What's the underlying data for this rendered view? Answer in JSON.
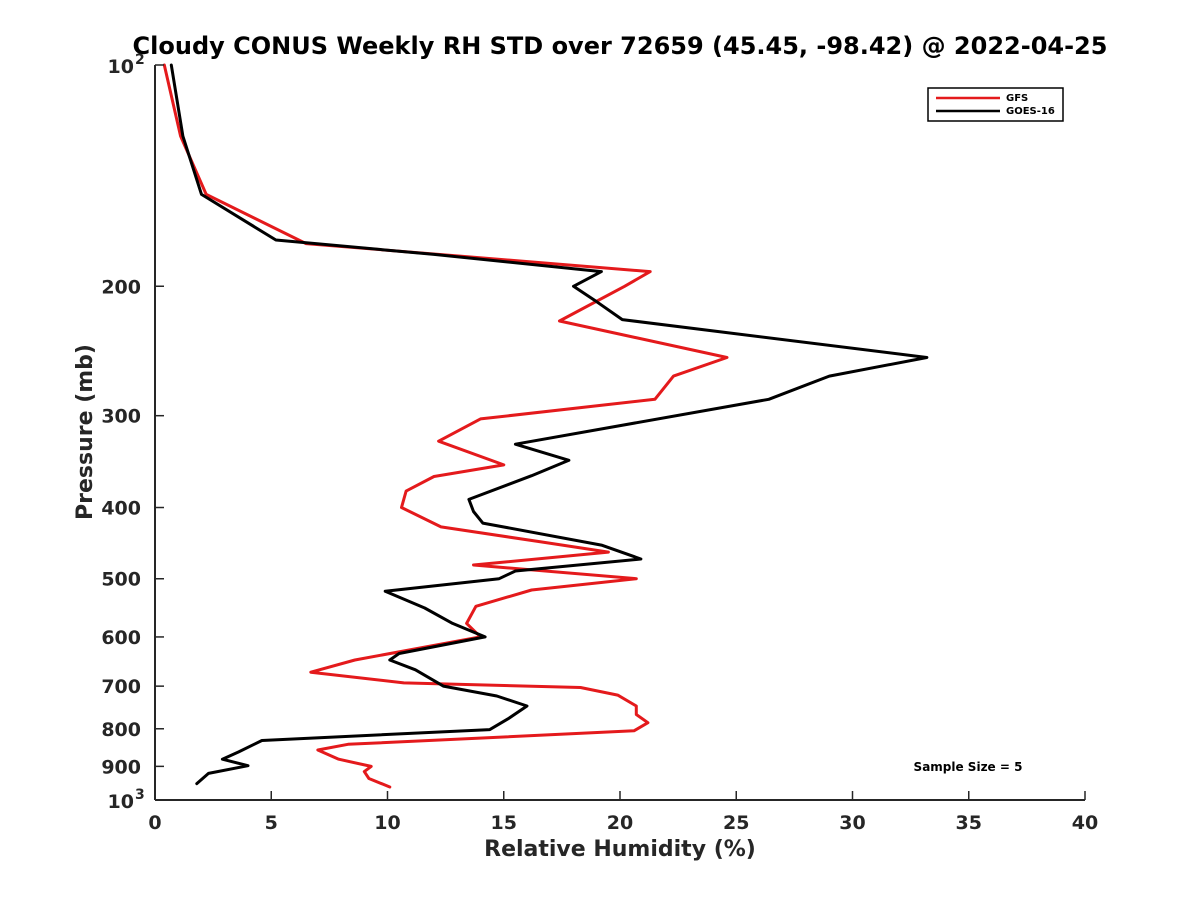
{
  "chart_data": {
    "type": "line",
    "title": "Cloudy CONUS Weekly RH STD over 72659 (45.45, -98.42) @ 2022-04-25",
    "xlabel": "Relative Humidity (%)",
    "ylabel": "Pressure (mb)",
    "xlim": [
      0,
      40
    ],
    "ylim": [
      100,
      1000
    ],
    "y_scale": "log",
    "y_reversed": true,
    "grid": false,
    "legend_position": "top-right",
    "x_ticks": [
      {
        "value": 0,
        "label": "0"
      },
      {
        "value": 5,
        "label": "5"
      },
      {
        "value": 10,
        "label": "10"
      },
      {
        "value": 15,
        "label": "15"
      },
      {
        "value": 20,
        "label": "20"
      },
      {
        "value": 25,
        "label": "25"
      },
      {
        "value": 30,
        "label": "30"
      },
      {
        "value": 35,
        "label": "35"
      },
      {
        "value": 40,
        "label": "40"
      }
    ],
    "y_ticks": [
      {
        "value": 100,
        "base": "10",
        "exp": "2"
      },
      {
        "value": 200,
        "base": "200",
        "exp": ""
      },
      {
        "value": 300,
        "base": "300",
        "exp": ""
      },
      {
        "value": 400,
        "base": "400",
        "exp": ""
      },
      {
        "value": 500,
        "base": "500",
        "exp": ""
      },
      {
        "value": 600,
        "base": "600",
        "exp": ""
      },
      {
        "value": 700,
        "base": "700",
        "exp": ""
      },
      {
        "value": 800,
        "base": "800",
        "exp": ""
      },
      {
        "value": 900,
        "base": "900",
        "exp": ""
      },
      {
        "value": 1000,
        "base": "10",
        "exp": "3"
      }
    ],
    "series": [
      {
        "name": "GFS",
        "color": "#e41a1c",
        "points": [
          {
            "rh": 0.4,
            "p": 100
          },
          {
            "rh": 1.1,
            "p": 125
          },
          {
            "rh": 2.2,
            "p": 150
          },
          {
            "rh": 6.5,
            "p": 175
          },
          {
            "rh": 21.3,
            "p": 191
          },
          {
            "rh": 20.2,
            "p": 200
          },
          {
            "rh": 17.4,
            "p": 223
          },
          {
            "rh": 24.6,
            "p": 250
          },
          {
            "rh": 22.3,
            "p": 265
          },
          {
            "rh": 21.5,
            "p": 285
          },
          {
            "rh": 14.0,
            "p": 303
          },
          {
            "rh": 12.2,
            "p": 325
          },
          {
            "rh": 15.0,
            "p": 350
          },
          {
            "rh": 12.0,
            "p": 363
          },
          {
            "rh": 10.8,
            "p": 380
          },
          {
            "rh": 10.6,
            "p": 400
          },
          {
            "rh": 12.3,
            "p": 425
          },
          {
            "rh": 16.5,
            "p": 445
          },
          {
            "rh": 19.5,
            "p": 460
          },
          {
            "rh": 13.7,
            "p": 479
          },
          {
            "rh": 20.7,
            "p": 500
          },
          {
            "rh": 16.2,
            "p": 518
          },
          {
            "rh": 13.8,
            "p": 545
          },
          {
            "rh": 13.4,
            "p": 575
          },
          {
            "rh": 14.0,
            "p": 600
          },
          {
            "rh": 8.6,
            "p": 645
          },
          {
            "rh": 6.7,
            "p": 670
          },
          {
            "rh": 10.7,
            "p": 693
          },
          {
            "rh": 18.3,
            "p": 703
          },
          {
            "rh": 19.9,
            "p": 720
          },
          {
            "rh": 20.7,
            "p": 745
          },
          {
            "rh": 20.7,
            "p": 765
          },
          {
            "rh": 21.2,
            "p": 785
          },
          {
            "rh": 20.6,
            "p": 805
          },
          {
            "rh": 8.3,
            "p": 840
          },
          {
            "rh": 7.0,
            "p": 855
          },
          {
            "rh": 7.9,
            "p": 880
          },
          {
            "rh": 9.3,
            "p": 900
          },
          {
            "rh": 9.0,
            "p": 915
          },
          {
            "rh": 9.2,
            "p": 935
          },
          {
            "rh": 10.1,
            "p": 960
          }
        ]
      },
      {
        "name": "GOES-16",
        "color": "#000000",
        "points": [
          {
            "rh": 0.7,
            "p": 100
          },
          {
            "rh": 1.2,
            "p": 125
          },
          {
            "rh": 2.0,
            "p": 150
          },
          {
            "rh": 5.2,
            "p": 173
          },
          {
            "rh": 12.0,
            "p": 181
          },
          {
            "rh": 19.2,
            "p": 191
          },
          {
            "rh": 18.0,
            "p": 200
          },
          {
            "rh": 19.0,
            "p": 210
          },
          {
            "rh": 20.1,
            "p": 222
          },
          {
            "rh": 33.2,
            "p": 250
          },
          {
            "rh": 29.0,
            "p": 265
          },
          {
            "rh": 26.4,
            "p": 285
          },
          {
            "rh": 15.5,
            "p": 328
          },
          {
            "rh": 17.8,
            "p": 345
          },
          {
            "rh": 16.2,
            "p": 362
          },
          {
            "rh": 13.5,
            "p": 390
          },
          {
            "rh": 13.7,
            "p": 405
          },
          {
            "rh": 14.1,
            "p": 420
          },
          {
            "rh": 19.2,
            "p": 450
          },
          {
            "rh": 20.9,
            "p": 470
          },
          {
            "rh": 15.5,
            "p": 488
          },
          {
            "rh": 14.8,
            "p": 500
          },
          {
            "rh": 9.9,
            "p": 520
          },
          {
            "rh": 11.6,
            "p": 548
          },
          {
            "rh": 12.8,
            "p": 575
          },
          {
            "rh": 14.2,
            "p": 600
          },
          {
            "rh": 10.5,
            "p": 632
          },
          {
            "rh": 10.1,
            "p": 645
          },
          {
            "rh": 11.2,
            "p": 665
          },
          {
            "rh": 12.4,
            "p": 700
          },
          {
            "rh": 14.7,
            "p": 722
          },
          {
            "rh": 16.0,
            "p": 745
          },
          {
            "rh": 15.2,
            "p": 775
          },
          {
            "rh": 14.4,
            "p": 802
          },
          {
            "rh": 4.6,
            "p": 830
          },
          {
            "rh": 3.6,
            "p": 860
          },
          {
            "rh": 2.9,
            "p": 880
          },
          {
            "rh": 4.0,
            "p": 898
          },
          {
            "rh": 2.3,
            "p": 920
          },
          {
            "rh": 1.8,
            "p": 950
          }
        ]
      }
    ],
    "annotation": "Sample Size = 5"
  }
}
